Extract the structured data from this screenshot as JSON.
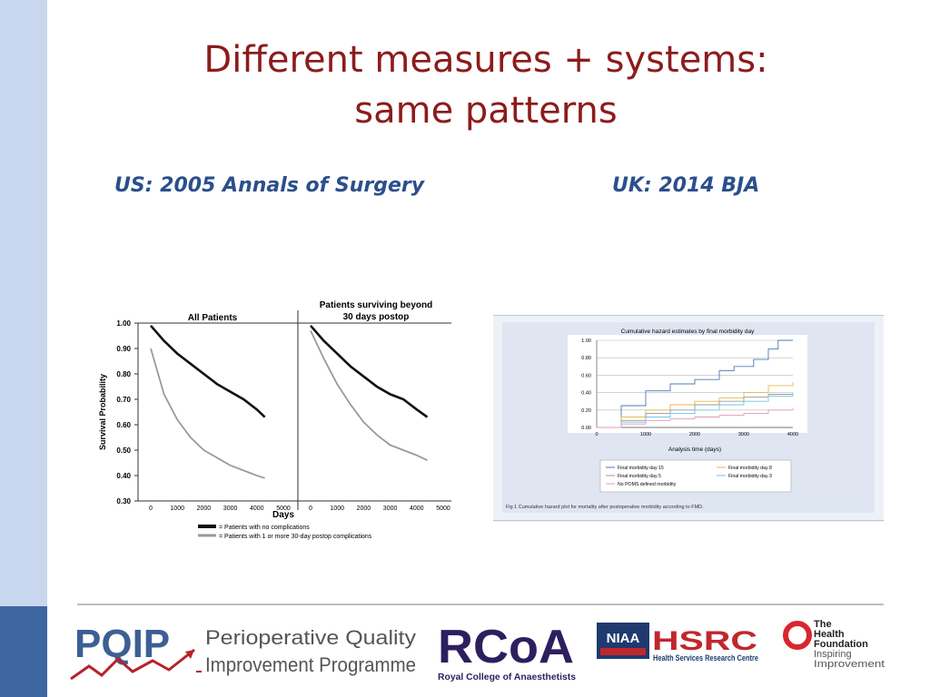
{
  "title_line1": "Different measures + systems:",
  "title_line2": "same patterns",
  "subtitle_left": "US: 2005 Annals of Surgery",
  "subtitle_right": "UK: 2014 BJA",
  "colors": {
    "title": "#8c1c1c",
    "subtitle": "#2b4f8c",
    "sidebar_light": "#c9d7ee",
    "sidebar_dark": "#3f679f"
  },
  "chart_data": [
    {
      "type": "line",
      "panels": [
        {
          "title": "All Patients",
          "x": [
            0,
            500,
            1000,
            1500,
            2000,
            2500,
            3000,
            3500,
            4000,
            4300
          ],
          "series": [
            {
              "name": "= Patients with no complications",
              "values": [
                0.99,
                0.93,
                0.88,
                0.84,
                0.8,
                0.76,
                0.73,
                0.7,
                0.66,
                0.63
              ]
            },
            {
              "name": "= Patients with 1 or more 30-day postop complications",
              "values": [
                0.9,
                0.72,
                0.62,
                0.55,
                0.5,
                0.47,
                0.44,
                0.42,
                0.4,
                0.39
              ]
            }
          ]
        },
        {
          "title_line1": "Patients surviving beyond",
          "title_line2": "30 days postop",
          "x": [
            0,
            500,
            1000,
            1500,
            2000,
            2500,
            3000,
            3500,
            4000,
            4400
          ],
          "series": [
            {
              "name": "= Patients with no complications",
              "values": [
                0.99,
                0.93,
                0.88,
                0.83,
                0.79,
                0.75,
                0.72,
                0.7,
                0.66,
                0.63
              ]
            },
            {
              "name": "= Patients with 1 or more 30-day postop complications",
              "values": [
                0.97,
                0.86,
                0.76,
                0.68,
                0.61,
                0.56,
                0.52,
                0.5,
                0.48,
                0.46
              ]
            }
          ]
        }
      ],
      "ylabel": "Survival Probability",
      "xlabel": "Days",
      "ylim": [
        0.3,
        1.0
      ],
      "yticks": [
        "1.00",
        "0.90",
        "0.80",
        "0.70",
        "0.60",
        "0.50",
        "0.40",
        "0.30"
      ],
      "xticks_left": [
        "0",
        "1000",
        "2000",
        "3000",
        "4000",
        "5000"
      ],
      "xticks_right": [
        "0",
        "1000",
        "2000",
        "3000",
        "4000",
        "5000"
      ],
      "legend": [
        {
          "label": "= Patients with no complications",
          "color": "#111111"
        },
        {
          "label": "= Patients with 1 or more 30-day postop complications",
          "color": "#999999"
        }
      ]
    },
    {
      "type": "line",
      "title": "Cumulative hazard estimates by final morbidity day",
      "xlabel": "Analysis time (days)",
      "xlim": [
        0,
        4000
      ],
      "ylim": [
        0,
        1.0
      ],
      "xticks": [
        "0",
        "1000",
        "2000",
        "3000",
        "4000"
      ],
      "yticks": [
        "0.00",
        "0.20",
        "0.40",
        "0.60",
        "0.80",
        "1.00"
      ],
      "series": [
        {
          "name": "Final morbidity day 15",
          "color": "#4a7bb7",
          "x": [
            0,
            500,
            1000,
            1500,
            2000,
            2500,
            2800,
            3200,
            3500,
            3700,
            4000
          ],
          "values": [
            0.0,
            0.25,
            0.42,
            0.5,
            0.55,
            0.65,
            0.7,
            0.78,
            0.9,
            1.0,
            1.0
          ]
        },
        {
          "name": "Final morbidity day 8",
          "color": "#e8b84a",
          "x": [
            0,
            500,
            1000,
            1500,
            2000,
            2500,
            3000,
            3500,
            4000
          ],
          "values": [
            0.0,
            0.12,
            0.2,
            0.26,
            0.3,
            0.34,
            0.4,
            0.48,
            0.52
          ]
        },
        {
          "name": "Final morbidity day 5",
          "color": "#9a9a9a",
          "x": [
            0,
            500,
            1000,
            1500,
            2000,
            2500,
            3000,
            3500,
            4000
          ],
          "values": [
            0.0,
            0.08,
            0.16,
            0.2,
            0.26,
            0.3,
            0.35,
            0.38,
            0.38
          ]
        },
        {
          "name": "Final morbidity day 3",
          "color": "#6ec6e8",
          "x": [
            0,
            500,
            1000,
            1500,
            2000,
            2500,
            3000,
            3500,
            4000
          ],
          "values": [
            0.0,
            0.06,
            0.12,
            0.16,
            0.2,
            0.26,
            0.3,
            0.36,
            0.4
          ]
        },
        {
          "name": "No POMS defined morbidity",
          "color": "#e39ab8",
          "x": [
            0,
            500,
            1000,
            1500,
            2000,
            2500,
            3000,
            3500,
            4000
          ],
          "values": [
            0.0,
            0.04,
            0.08,
            0.1,
            0.12,
            0.14,
            0.16,
            0.2,
            0.22
          ]
        }
      ],
      "caption": "Fig 1  Cumulative hazard plot for mortality after postoperative morbidity according to FMD."
    }
  ],
  "logos": {
    "pqip_abbr": "PQIP",
    "pqip_line1": "Perioperative Quality",
    "pqip_line2": "Improvement Programme",
    "rcoa_abbr": "RCoA",
    "rcoa_name": "Royal College of Anaesthetists",
    "niaa": "NIAA",
    "hsrc": "HSRC",
    "hsrc_name": "Health Services Research Centre",
    "thf_line1": "The",
    "thf_line2": "Health",
    "thf_line3": "Foundation",
    "thf_line4": "Inspiring",
    "thf_line5": "Improvement"
  }
}
